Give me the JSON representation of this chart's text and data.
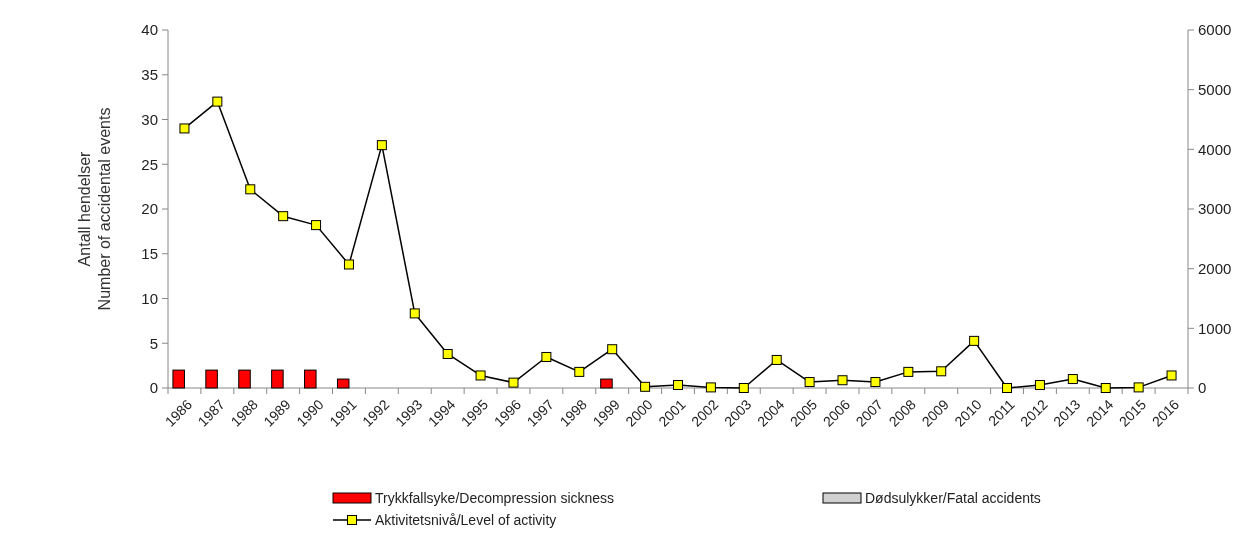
{
  "chart_data": {
    "type": "bar",
    "ylabel": "Antall hendelser\nNumber of accidental events",
    "categories": [
      "1986",
      "1987",
      "1988",
      "1989",
      "1990",
      "1991",
      "1992",
      "1993",
      "1994",
      "1995",
      "1996",
      "1997",
      "1998",
      "1999",
      "2000",
      "2001",
      "2002",
      "2003",
      "2004",
      "2005",
      "2006",
      "2007",
      "2008",
      "2009",
      "2010",
      "2011",
      "2012",
      "2013",
      "2014",
      "2015",
      "2016"
    ],
    "series": [
      {
        "name": "Trykkfallsyke/Decompression sickness",
        "color": "#ff0000",
        "values": [
          2,
          2,
          2,
          2,
          2,
          1,
          0,
          0,
          0,
          0,
          0,
          0,
          0,
          1,
          0,
          0,
          0,
          0,
          0,
          0,
          0,
          0,
          0,
          0,
          0,
          0,
          0,
          0,
          0,
          0,
          0
        ]
      },
      {
        "name": "Dødsulykker/Fatal accidents",
        "color": "#d0d0d0",
        "values": [
          0,
          0,
          0,
          0,
          0,
          0,
          0,
          0,
          0,
          0,
          0,
          0,
          0,
          0,
          0,
          0,
          0,
          0,
          0,
          0,
          0,
          0,
          0,
          0,
          0,
          0,
          0,
          0,
          0,
          0,
          0
        ]
      },
      {
        "name": "Aktivitetsnivå/Level of activity",
        "type": "line",
        "axis": "y2",
        "color": "#ffff00",
        "values": [
          4350,
          4800,
          3330,
          2880,
          2730,
          2070,
          4070,
          1250,
          570,
          210,
          90,
          520,
          270,
          650,
          20,
          50,
          10,
          0,
          470,
          100,
          130,
          100,
          270,
          280,
          790,
          0,
          50,
          150,
          0,
          10,
          210
        ]
      }
    ],
    "ylim": [
      0,
      40
    ],
    "yticks": [
      0,
      5,
      10,
      15,
      20,
      25,
      30,
      35,
      40
    ],
    "y2lim": [
      0,
      6000
    ],
    "y2ticks": [
      0,
      1000,
      2000,
      3000,
      4000,
      5000,
      6000
    ],
    "marker": "square",
    "line_style": "solid",
    "legend": "bottom",
    "grid": false
  }
}
